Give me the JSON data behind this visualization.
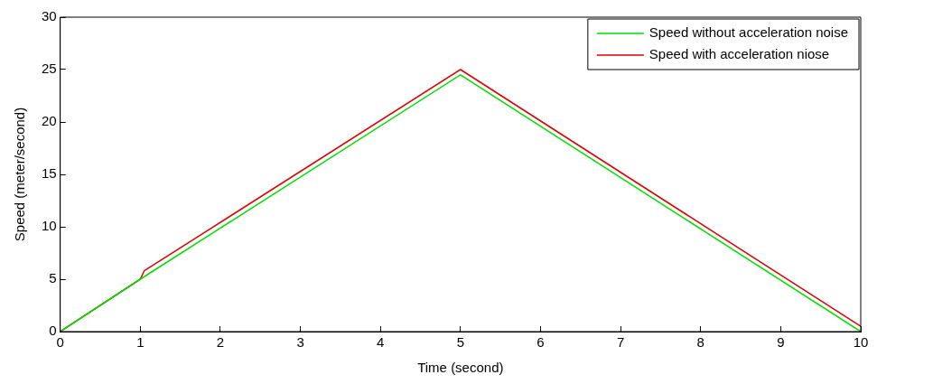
{
  "chart_data": {
    "type": "line",
    "xlabel": "Time (second)",
    "ylabel": "Speed (meter/second)",
    "xlim": [
      0,
      10
    ],
    "xticks": [
      0,
      1,
      2,
      3,
      4,
      5,
      6,
      7,
      8,
      9,
      10
    ],
    "ylim": [
      0,
      30
    ],
    "yticks": [
      0,
      5,
      10,
      15,
      20,
      25,
      30
    ],
    "grid": false,
    "legend": "top right",
    "marker": "none",
    "line_style": "solid",
    "series": [
      {
        "name": "Speed without acceleration noise",
        "color": "#00dd00",
        "x": [
          0,
          1,
          5,
          10
        ],
        "values": [
          0,
          5,
          24.5,
          0
        ]
      },
      {
        "name": "Speed with acceleration niose",
        "color": "#dd0000",
        "x": [
          0,
          1,
          1.05,
          5,
          10
        ],
        "values": [
          0,
          5,
          5.8,
          25,
          0.5
        ]
      }
    ]
  }
}
